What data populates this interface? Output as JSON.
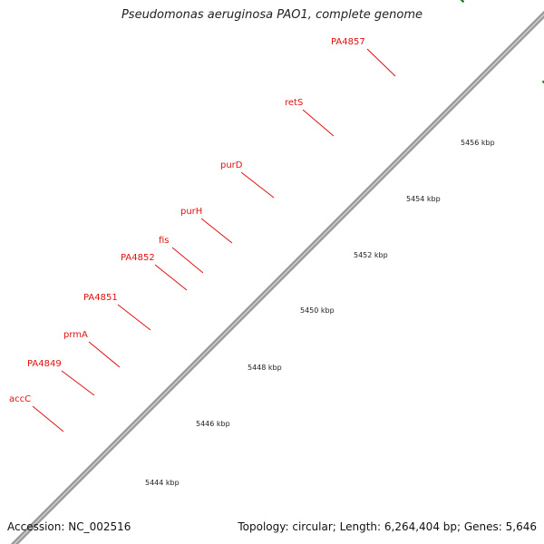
{
  "title": "Pseudomonas aeruginosa PAO1, complete genome",
  "footer": {
    "accession": "Accession: NC_002516",
    "summary": "Topology: circular; Length: 6,264,404 bp; Genes: 5,646"
  },
  "colors": {
    "cds_forward": "#ee0000",
    "backbone": "#9a9a9a",
    "label": "#e01010",
    "leader": "#e01010",
    "tick_major": "#1a7a1a",
    "tick_minor": "#1a8a1a",
    "cog_cyan": "#11aaee",
    "cog_steelblue": "#4f86c0",
    "cog_violet": "#6a4fd0",
    "cog_pink": "#e88888",
    "cog_lime": "#88ee22",
    "cog_magenta": "#dd22aa",
    "cog_orange": "#f0a020",
    "cog_khaki": "#c8b070"
  },
  "gene_labels": [
    "accC",
    "PA4849",
    "prmA",
    "PA4851",
    "PA4852",
    "fis",
    "purH",
    "purD",
    "retS",
    "PA4857"
  ],
  "scale_labels": [
    "5444 kbp",
    "5446 kbp",
    "5448 kbp",
    "5450 kbp",
    "5452 kbp",
    "5454 kbp",
    "5456 kbp"
  ]
}
